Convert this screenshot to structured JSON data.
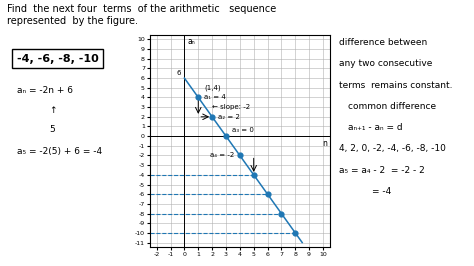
{
  "chart_data": {
    "type": "line",
    "title": "Find  the next four  terms  of the arithmetic   sequence\nrepresented  by the figure.",
    "x_label": "n",
    "y_label": "aₙ",
    "xlim": [
      -2.5,
      10.5
    ],
    "ylim": [
      -11.5,
      10.5
    ],
    "xticks": [
      -2,
      -1,
      0,
      1,
      2,
      3,
      4,
      5,
      6,
      7,
      8,
      9,
      10
    ],
    "yticks": [
      -11,
      -10,
      -9,
      -8,
      -7,
      -6,
      -5,
      -4,
      -3,
      -2,
      -1,
      0,
      1,
      2,
      3,
      4,
      5,
      6,
      7,
      8,
      9,
      10
    ],
    "grid": true,
    "series": [
      {
        "type": "line",
        "x": [
          0,
          8.5
        ],
        "values": [
          6,
          -11
        ]
      },
      {
        "type": "scatter",
        "x": [
          1,
          2,
          3,
          4
        ],
        "values": [
          4,
          2,
          0,
          -2
        ]
      },
      {
        "type": "scatter",
        "x": [
          5,
          6,
          7,
          8
        ],
        "values": [
          -4,
          -6,
          -8,
          -10
        ],
        "line_style": "dashed"
      }
    ],
    "annotations": [
      {
        "text": "a₁ = 4",
        "x": 1,
        "y": 4
      },
      {
        "text": "(1,4)",
        "x": 1,
        "y": 4
      },
      {
        "text": "a₂ = 2",
        "x": 2,
        "y": 2
      },
      {
        "text": "a₃ = 0",
        "x": 3,
        "y": 0
      },
      {
        "text": "a₄ = -2",
        "x": 4,
        "y": -2
      },
      {
        "text": "6",
        "x": 0,
        "y": 6
      }
    ],
    "arrows": [
      {
        "from": [
          1,
          4
        ],
        "to": [
          1,
          2
        ],
        "label": "← slope: -2"
      },
      {
        "from": [
          1,
          2
        ],
        "to": [
          2,
          2
        ]
      },
      {
        "from": [
          5,
          -2
        ],
        "to": [
          5,
          -4
        ]
      }
    ],
    "answer": "-4, -6, -8, -10",
    "left_notes": [
      "aₙ = -2n + 6",
      "↑",
      "5",
      "a₅ = -2(5) + 6 = -4"
    ],
    "right_notes": [
      "difference between",
      "any two consecutive",
      "terms  remains constant.",
      "common difference",
      "aₙ₊₁ - aₙ = d",
      "4, 2, 0, -2, -4, -6, -8, -10",
      "a₅ = a₄ - 2  = -2 - 2",
      "= -4"
    ]
  }
}
